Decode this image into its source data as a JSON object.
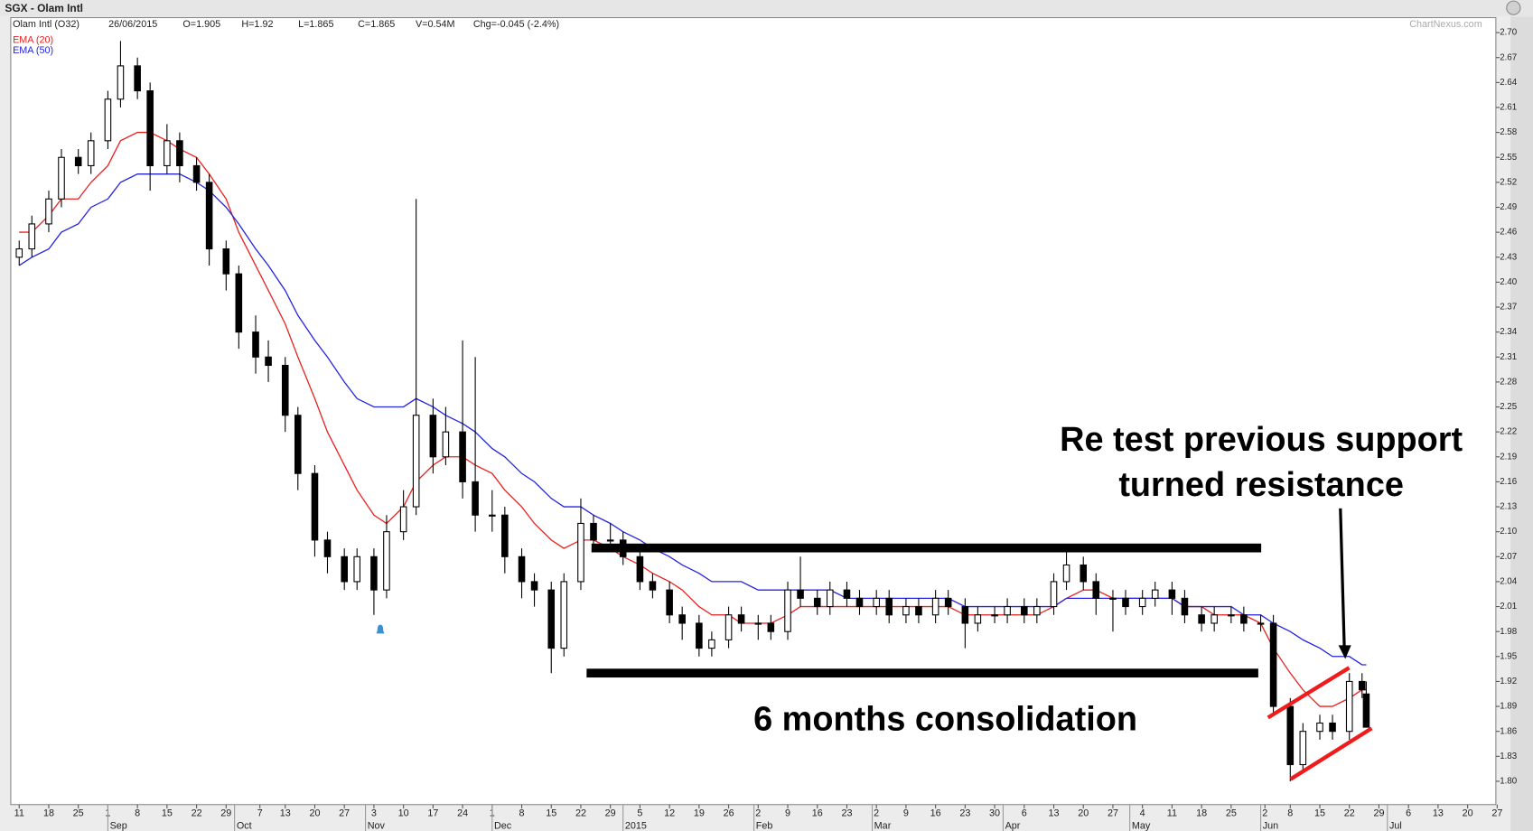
{
  "chart_data": {
    "type": "candlestick",
    "title": "SGX - Olam Intl",
    "symbol": "Olam Intl (O32)",
    "date": "26/06/2015",
    "stats": [
      "O=1.905",
      "H=1.92",
      "L=1.865",
      "C=1.865",
      "V=0.54M",
      "Chg=-0.045 (-2.4%)"
    ],
    "source": "ChartNexus.com",
    "annotations": [
      "Re test previous support",
      "turned resistance",
      "6 months consolidation"
    ],
    "up_color": "#ffffff",
    "down_color": "#000000",
    "x": [
      "2014-08-11",
      "2014-08-14",
      "2014-08-18",
      "2014-08-21",
      "2014-08-25",
      "2014-08-28",
      "2014-09-01",
      "2014-09-04",
      "2014-09-08",
      "2014-09-11",
      "2014-09-15",
      "2014-09-18",
      "2014-09-22",
      "2014-09-25",
      "2014-09-29",
      "2014-10-02",
      "2014-10-06",
      "2014-10-09",
      "2014-10-13",
      "2014-10-16",
      "2014-10-20",
      "2014-10-23",
      "2014-10-27",
      "2014-10-30",
      "2014-11-03",
      "2014-11-06",
      "2014-11-10",
      "2014-11-13",
      "2014-11-17",
      "2014-11-20",
      "2014-11-24",
      "2014-11-27",
      "2014-12-01",
      "2014-12-04",
      "2014-12-08",
      "2014-12-11",
      "2014-12-15",
      "2014-12-18",
      "2014-12-22",
      "2014-12-25",
      "2014-12-29",
      "2015-01-01",
      "2015-01-05",
      "2015-01-08",
      "2015-01-12",
      "2015-01-15",
      "2015-01-19",
      "2015-01-22",
      "2015-01-26",
      "2015-01-29",
      "2015-02-02",
      "2015-02-05",
      "2015-02-09",
      "2015-02-12",
      "2015-02-16",
      "2015-02-19",
      "2015-02-23",
      "2015-02-26",
      "2015-03-02",
      "2015-03-05",
      "2015-03-09",
      "2015-03-12",
      "2015-03-16",
      "2015-03-19",
      "2015-03-23",
      "2015-03-26",
      "2015-03-30",
      "2015-04-02",
      "2015-04-06",
      "2015-04-09",
      "2015-04-13",
      "2015-04-16",
      "2015-04-20",
      "2015-04-23",
      "2015-04-27",
      "2015-04-30",
      "2015-05-04",
      "2015-05-07",
      "2015-05-11",
      "2015-05-14",
      "2015-05-18",
      "2015-05-21",
      "2015-05-25",
      "2015-05-28",
      "2015-06-01",
      "2015-06-04",
      "2015-06-08",
      "2015-06-11",
      "2015-06-15",
      "2015-06-18",
      "2015-06-22",
      "2015-06-25",
      "2015-06-26"
    ],
    "open": [
      2.43,
      2.44,
      2.47,
      2.5,
      2.55,
      2.54,
      2.57,
      2.62,
      2.66,
      2.63,
      2.54,
      2.57,
      2.54,
      2.52,
      2.44,
      2.41,
      2.34,
      2.31,
      2.3,
      2.24,
      2.17,
      2.09,
      2.07,
      2.04,
      2.07,
      2.03,
      2.1,
      2.13,
      2.24,
      2.19,
      2.22,
      2.16,
      2.12,
      2.12,
      2.07,
      2.04,
      2.03,
      1.96,
      2.04,
      2.11,
      2.09,
      2.09,
      2.07,
      2.04,
      2.03,
      2.0,
      1.99,
      1.96,
      1.97,
      2.0,
      1.99,
      1.99,
      1.98,
      2.03,
      2.02,
      2.01,
      2.03,
      2.02,
      2.01,
      2.02,
      2.0,
      2.01,
      2.0,
      2.02,
      2.01,
      1.99,
      2.0,
      2.0,
      2.01,
      2.0,
      2.01,
      2.04,
      2.06,
      2.04,
      2.02,
      2.02,
      2.01,
      2.02,
      2.03,
      2.02,
      2.0,
      1.99,
      2.0,
      2.0,
      1.99,
      1.99,
      1.89,
      1.82,
      1.86,
      1.87,
      1.86,
      1.92,
      1.905
    ],
    "high": [
      2.45,
      2.48,
      2.51,
      2.56,
      2.56,
      2.58,
      2.63,
      2.69,
      2.67,
      2.64,
      2.59,
      2.58,
      2.55,
      2.53,
      2.45,
      2.42,
      2.36,
      2.33,
      2.31,
      2.25,
      2.18,
      2.1,
      2.08,
      2.08,
      2.08,
      2.12,
      2.15,
      2.5,
      2.26,
      2.25,
      2.33,
      2.31,
      2.15,
      2.13,
      2.08,
      2.05,
      2.04,
      2.05,
      2.14,
      2.12,
      2.11,
      2.1,
      2.08,
      2.05,
      2.04,
      2.01,
      2.0,
      1.98,
      2.01,
      2.01,
      2.0,
      2.0,
      2.04,
      2.07,
      2.03,
      2.04,
      2.04,
      2.03,
      2.03,
      2.03,
      2.02,
      2.02,
      2.03,
      2.03,
      2.02,
      2.01,
      2.01,
      2.02,
      2.02,
      2.02,
      2.05,
      2.08,
      2.07,
      2.05,
      2.03,
      2.03,
      2.03,
      2.04,
      2.04,
      2.03,
      2.01,
      2.01,
      2.01,
      2.01,
      2.0,
      2.0,
      1.9,
      1.87,
      1.88,
      1.88,
      1.93,
      1.93,
      1.92
    ],
    "low": [
      2.42,
      2.43,
      2.46,
      2.49,
      2.53,
      2.53,
      2.56,
      2.61,
      2.62,
      2.51,
      2.53,
      2.52,
      2.51,
      2.42,
      2.39,
      2.32,
      2.29,
      2.28,
      2.22,
      2.15,
      2.07,
      2.05,
      2.03,
      2.03,
      2.0,
      2.02,
      2.09,
      2.12,
      2.17,
      2.18,
      2.14,
      2.1,
      2.1,
      2.05,
      2.02,
      2.01,
      1.93,
      1.95,
      2.03,
      2.08,
      2.08,
      2.06,
      2.03,
      2.02,
      1.99,
      1.97,
      1.95,
      1.95,
      1.96,
      1.98,
      1.97,
      1.97,
      1.97,
      2.01,
      2.0,
      2.0,
      2.01,
      2.0,
      2.0,
      1.99,
      1.99,
      1.99,
      1.99,
      2.0,
      1.96,
      1.98,
      1.99,
      1.99,
      1.99,
      1.99,
      2.0,
      2.03,
      2.03,
      2.0,
      1.98,
      2.0,
      2.0,
      2.01,
      2.0,
      1.99,
      1.98,
      1.98,
      1.99,
      1.98,
      1.98,
      1.88,
      1.8,
      1.81,
      1.85,
      1.85,
      1.85,
      1.9,
      1.865
    ],
    "close": [
      2.44,
      2.47,
      2.5,
      2.55,
      2.54,
      2.57,
      2.62,
      2.66,
      2.63,
      2.54,
      2.57,
      2.54,
      2.52,
      2.44,
      2.41,
      2.34,
      2.31,
      2.3,
      2.24,
      2.17,
      2.09,
      2.07,
      2.04,
      2.07,
      2.03,
      2.1,
      2.13,
      2.24,
      2.19,
      2.22,
      2.16,
      2.12,
      2.12,
      2.07,
      2.04,
      2.03,
      1.96,
      2.04,
      2.11,
      2.09,
      2.09,
      2.07,
      2.04,
      2.03,
      2.0,
      1.99,
      1.96,
      1.97,
      2.0,
      1.99,
      1.99,
      1.98,
      2.03,
      2.02,
      2.01,
      2.03,
      2.02,
      2.01,
      2.02,
      2.0,
      2.01,
      2.0,
      2.02,
      2.01,
      1.99,
      2.0,
      2.0,
      2.01,
      2.0,
      2.01,
      2.04,
      2.06,
      2.04,
      2.02,
      2.02,
      2.01,
      2.02,
      2.03,
      2.02,
      2.0,
      1.99,
      2.0,
      2.0,
      1.99,
      1.99,
      1.89,
      1.82,
      1.86,
      1.87,
      1.86,
      1.92,
      1.91,
      1.865
    ],
    "series": [
      {
        "name": "EMA (20)",
        "color": "#e8211f",
        "values": [
          2.46,
          2.46,
          2.48,
          2.5,
          2.5,
          2.52,
          2.54,
          2.57,
          2.58,
          2.58,
          2.57,
          2.56,
          2.55,
          2.53,
          2.5,
          2.46,
          2.42,
          2.39,
          2.35,
          2.31,
          2.26,
          2.22,
          2.18,
          2.15,
          2.12,
          2.11,
          2.13,
          2.16,
          2.18,
          2.19,
          2.19,
          2.18,
          2.17,
          2.15,
          2.13,
          2.11,
          2.09,
          2.08,
          2.09,
          2.09,
          2.08,
          2.07,
          2.06,
          2.05,
          2.04,
          2.03,
          2.01,
          2.0,
          2.0,
          1.99,
          1.99,
          1.99,
          2.0,
          2.01,
          2.01,
          2.01,
          2.01,
          2.01,
          2.01,
          2.01,
          2.01,
          2.01,
          2.01,
          2.01,
          2.0,
          2.0,
          2.0,
          2.0,
          2.0,
          2.0,
          2.01,
          2.02,
          2.03,
          2.03,
          2.02,
          2.02,
          2.02,
          2.02,
          2.02,
          2.01,
          2.01,
          2.0,
          2.0,
          2.0,
          1.99,
          1.96,
          1.93,
          1.91,
          1.89,
          1.89,
          1.9,
          1.91,
          1.91
        ]
      },
      {
        "name": "EMA (50)",
        "color": "#2424e0",
        "values": [
          2.42,
          2.43,
          2.44,
          2.46,
          2.47,
          2.49,
          2.5,
          2.52,
          2.53,
          2.53,
          2.53,
          2.53,
          2.52,
          2.51,
          2.49,
          2.47,
          2.44,
          2.42,
          2.39,
          2.36,
          2.33,
          2.31,
          2.28,
          2.26,
          2.25,
          2.25,
          2.25,
          2.26,
          2.25,
          2.24,
          2.23,
          2.22,
          2.2,
          2.19,
          2.17,
          2.16,
          2.14,
          2.13,
          2.13,
          2.12,
          2.11,
          2.1,
          2.09,
          2.08,
          2.07,
          2.06,
          2.05,
          2.04,
          2.04,
          2.04,
          2.03,
          2.03,
          2.03,
          2.03,
          2.03,
          2.03,
          2.02,
          2.02,
          2.02,
          2.02,
          2.02,
          2.02,
          2.02,
          2.02,
          2.01,
          2.01,
          2.01,
          2.01,
          2.01,
          2.01,
          2.01,
          2.02,
          2.02,
          2.02,
          2.02,
          2.02,
          2.02,
          2.02,
          2.02,
          2.01,
          2.01,
          2.01,
          2.01,
          2.0,
          2.0,
          1.99,
          1.98,
          1.97,
          1.96,
          1.95,
          1.95,
          1.94,
          1.94
        ]
      }
    ],
    "ylim": [
      1.772,
      2.718
    ],
    "yticks": [
      {
        "value": 1.8,
        "label": "1.80"
      },
      1.83,
      1.86,
      1.89,
      1.92,
      1.95,
      1.98,
      2.01,
      2.04,
      2.07,
      {
        "value": 2.1,
        "label": "2.10"
      },
      2.13,
      2.16,
      2.19,
      2.22,
      2.25,
      2.28,
      2.31,
      2.34,
      2.37,
      {
        "value": 2.4,
        "label": "2.40"
      },
      2.43,
      2.46,
      2.49,
      2.52,
      2.55,
      2.58,
      2.61,
      2.64,
      2.67,
      {
        "value": 2.7,
        "label": "2.70"
      }
    ],
    "xlim": [
      "2014-08-09",
      "2015-07-29"
    ],
    "xticks": [
      {
        "value": "2014-08-11",
        "label": "11"
      },
      {
        "value": "2014-08-18",
        "label": "18"
      },
      {
        "value": "2014-08-25",
        "label": "25"
      },
      {
        "value": "2014-09-01",
        "label": "1"
      },
      {
        "value": "2014-09-08",
        "label": "8"
      },
      {
        "value": "2014-09-15",
        "label": "15"
      },
      {
        "value": "2014-09-22",
        "label": "22"
      },
      {
        "value": "2014-09-29",
        "label": "29"
      },
      {
        "value": "2014-10-07",
        "label": "7"
      },
      {
        "value": "2014-10-13",
        "label": "13"
      },
      {
        "value": "2014-10-20",
        "label": "20"
      },
      {
        "value": "2014-10-27",
        "label": "27"
      },
      {
        "value": "2014-11-03",
        "label": "3"
      },
      {
        "value": "2014-11-10",
        "label": "10"
      },
      {
        "value": "2014-11-17",
        "label": "17"
      },
      {
        "value": "2014-11-24",
        "label": "24"
      },
      {
        "value": "2014-12-01",
        "label": "1"
      },
      {
        "value": "2014-12-08",
        "label": "8"
      },
      {
        "value": "2014-12-15",
        "label": "15"
      },
      {
        "value": "2014-12-22",
        "label": "22"
      },
      {
        "value": "2014-12-29",
        "label": "29"
      },
      {
        "value": "2015-01-05",
        "label": "5"
      },
      {
        "value": "2015-01-12",
        "label": "12"
      },
      {
        "value": "2015-01-19",
        "label": "19"
      },
      {
        "value": "2015-01-26",
        "label": "26"
      },
      {
        "value": "2015-02-02",
        "label": "2"
      },
      {
        "value": "2015-02-09",
        "label": "9"
      },
      {
        "value": "2015-02-16",
        "label": "16"
      },
      {
        "value": "2015-02-23",
        "label": "23"
      },
      {
        "value": "2015-03-02",
        "label": "2"
      },
      {
        "value": "2015-03-09",
        "label": "9"
      },
      {
        "value": "2015-03-16",
        "label": "16"
      },
      {
        "value": "2015-03-23",
        "label": "23"
      },
      {
        "value": "2015-03-30",
        "label": "30"
      },
      {
        "value": "2015-04-06",
        "label": "6"
      },
      {
        "value": "2015-04-13",
        "label": "13"
      },
      {
        "value": "2015-04-20",
        "label": "20"
      },
      {
        "value": "2015-04-27",
        "label": "27"
      },
      {
        "value": "2015-05-04",
        "label": "4"
      },
      {
        "value": "2015-05-11",
        "label": "11"
      },
      {
        "value": "2015-05-18",
        "label": "18"
      },
      {
        "value": "2015-05-25",
        "label": "25"
      },
      {
        "value": "2015-06-02",
        "label": "2"
      },
      {
        "value": "2015-06-08",
        "label": "8"
      },
      {
        "value": "2015-06-15",
        "label": "15"
      },
      {
        "value": "2015-06-22",
        "label": "22"
      },
      {
        "value": "2015-06-29",
        "label": "29"
      },
      {
        "value": "2015-07-06",
        "label": "6"
      },
      {
        "value": "2015-07-13",
        "label": "13"
      },
      {
        "value": "2015-07-20",
        "label": "20"
      },
      {
        "value": "2015-07-27",
        "label": "27"
      }
    ],
    "month_labels": [
      {
        "value": "2014-09-01",
        "label": "Sep"
      },
      {
        "value": "2014-10-01",
        "label": "Oct"
      },
      {
        "value": "2014-11-01",
        "label": "Nov"
      },
      {
        "value": "2014-12-01",
        "label": "Dec"
      },
      {
        "value": "2015-01-01",
        "label": "2015"
      },
      {
        "value": "2015-02-01",
        "label": "Feb"
      },
      {
        "value": "2015-03-01",
        "label": "Mar"
      },
      {
        "value": "2015-04-01",
        "label": "Apr"
      },
      {
        "value": "2015-05-01",
        "label": "May"
      },
      {
        "value": "2015-06-01",
        "label": "Jun"
      },
      {
        "value": "2015-07-01",
        "label": "Jul"
      }
    ]
  }
}
